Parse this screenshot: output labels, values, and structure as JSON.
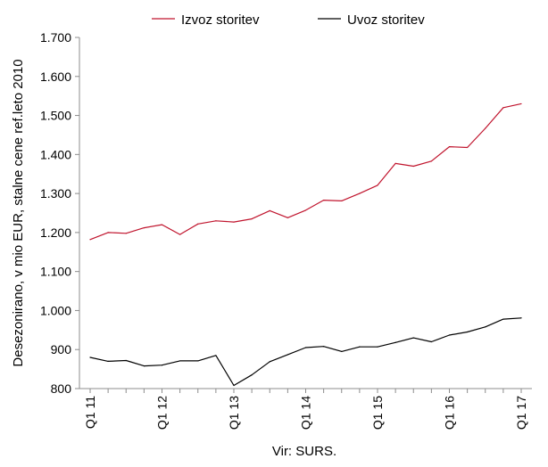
{
  "chart_data": {
    "type": "line",
    "title": "",
    "xlabel": "",
    "ylabel": "Desezonirano, v mio EUR, stalne cene ref.leto 2010",
    "ylim": [
      800,
      1700
    ],
    "y_ticks": [
      "800",
      "900",
      "1.000",
      "1.100",
      "1.200",
      "1.300",
      "1.400",
      "1.500",
      "1.600",
      "1.700"
    ],
    "y_tick_values": [
      800,
      900,
      1000,
      1100,
      1200,
      1300,
      1400,
      1500,
      1600,
      1700
    ],
    "x": [
      "Q1 11",
      "Q2 11",
      "Q3 11",
      "Q4 11",
      "Q1 12",
      "Q2 12",
      "Q3 12",
      "Q4 12",
      "Q1 13",
      "Q2 13",
      "Q3 13",
      "Q4 13",
      "Q1 14",
      "Q2 14",
      "Q3 14",
      "Q4 14",
      "Q1 15",
      "Q2 15",
      "Q3 15",
      "Q4 15",
      "Q1 16",
      "Q2 16",
      "Q3 16",
      "Q4 16",
      "Q1 17"
    ],
    "x_tick_labels": [
      "Q1 11",
      "Q1 12",
      "Q1 13",
      "Q1 14",
      "Q1 15",
      "Q1 16",
      "Q1 17"
    ],
    "x_tick_index": [
      0,
      4,
      8,
      12,
      16,
      20,
      24
    ],
    "grid": "none",
    "legend_position": "top",
    "series": [
      {
        "name": "Izvoz storitev",
        "color": "#c0142d",
        "values": [
          1182,
          1200,
          1198,
          1212,
          1220,
          1195,
          1222,
          1230,
          1227,
          1235,
          1256,
          1238,
          1257,
          1283,
          1281,
          1300,
          1321,
          1377,
          1370,
          1383,
          1420,
          1418,
          1467,
          1520,
          1530
        ]
      },
      {
        "name": "Uvoz storitev",
        "color": "#000000",
        "values": [
          880,
          870,
          872,
          858,
          860,
          871,
          871,
          885,
          808,
          835,
          869,
          887,
          905,
          908,
          895,
          907,
          907,
          918,
          930,
          920,
          937,
          945,
          958,
          978,
          981
        ]
      }
    ]
  },
  "source_text": "Vir: SURS."
}
